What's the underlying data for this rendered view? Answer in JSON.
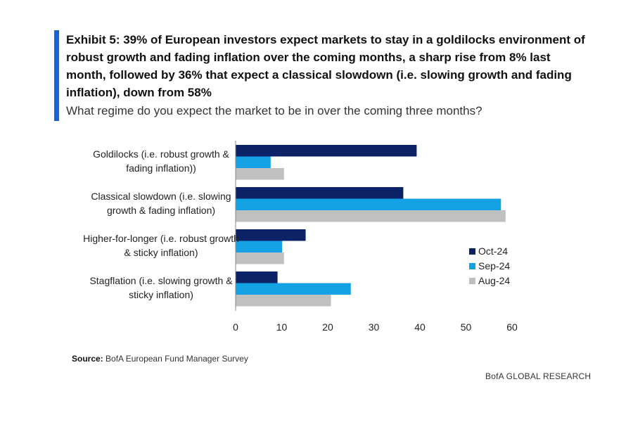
{
  "title": "Exhibit 5: 39% of European investors expect markets to stay in a goldilocks environment of robust growth and fading inflation over the coming months, a sharp rise from 8% last month, followed by 36% that expect a classical slowdown (i.e. slowing growth and fading inflation), down from 58%",
  "subtitle": "What regime do you expect the market to be in over the coming three months?",
  "source_label": "Source:",
  "source_text": "BofA European Fund Manager Survey",
  "brand": "BofA GLOBAL RESEARCH",
  "colors": {
    "accent": "#1565d8"
  },
  "chart_data": {
    "type": "bar",
    "orientation": "horizontal",
    "categories": [
      [
        "Goldilocks (i.e. robust growth &",
        "fading inflation))"
      ],
      [
        "Classical slowdown (i.e. slowing",
        "growth & fading inflation)"
      ],
      [
        "Higher-for-longer (i.e. robust growth",
        "& sticky inflation)"
      ],
      [
        "Stagflation (i.e. slowing growth &",
        "sticky inflation)"
      ]
    ],
    "series": [
      {
        "name": "Oct-24",
        "color": "#0b2266",
        "values": [
          39.3,
          36.4,
          15.2,
          9.1
        ]
      },
      {
        "name": "Sep-24",
        "color": "#13a2e4",
        "values": [
          7.6,
          57.6,
          10.1,
          25.0
        ]
      },
      {
        "name": "Aug-24",
        "color": "#c0c0c0",
        "values": [
          10.5,
          58.6,
          10.5,
          20.7
        ]
      }
    ],
    "xlim": [
      0,
      60
    ],
    "xticks": [
      0,
      10,
      20,
      30,
      40,
      50,
      60
    ],
    "grid": false,
    "legend_position": "bottom-right"
  }
}
